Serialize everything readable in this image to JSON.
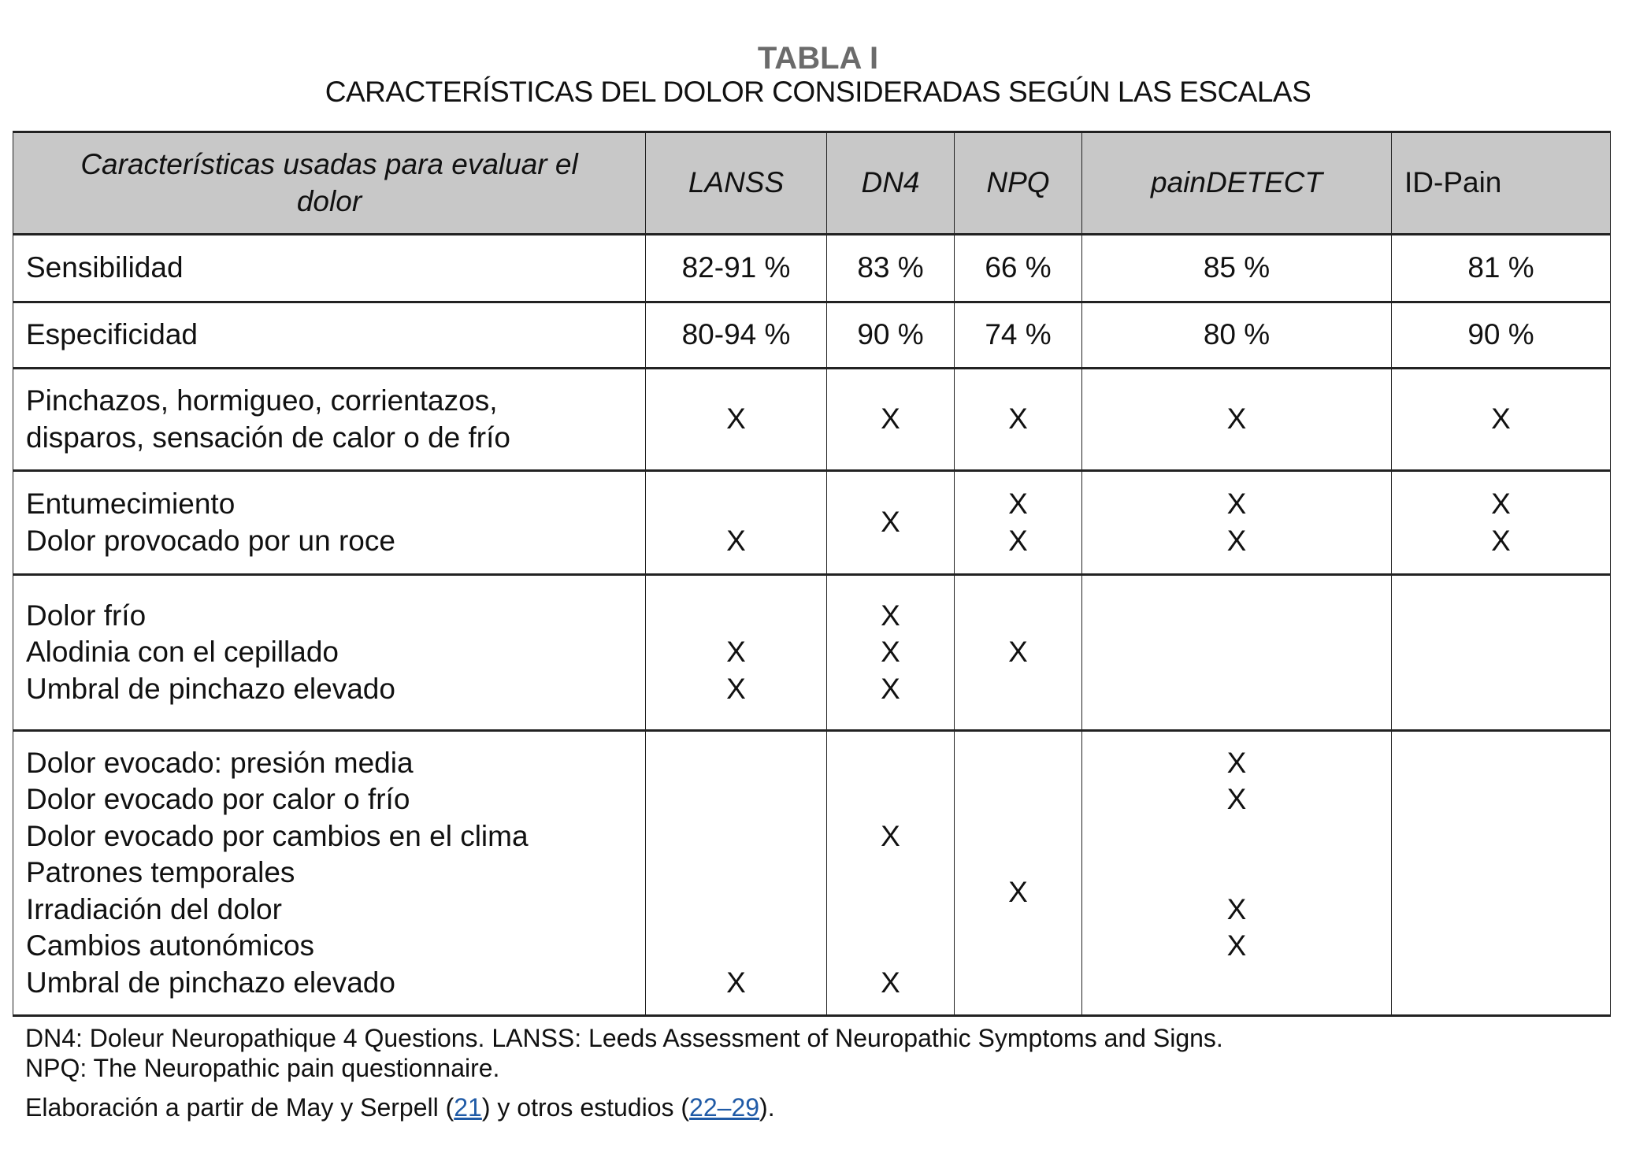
{
  "title": "TABLA I",
  "subtitle": "CARACTERÍSTICAS DEL DOLOR CONSIDERADAS SEGÚN LAS ESCALAS",
  "table": {
    "headers": [
      "Características usadas para evaluar el dolor",
      "LANSS",
      "DN4",
      "NPQ",
      "painDETECT",
      "ID-Pain"
    ],
    "rows": [
      {
        "labels": [
          "Sensibilidad"
        ],
        "cells": [
          [
            "82-91 %"
          ],
          [
            "83 %"
          ],
          [
            "66 %"
          ],
          [
            "85 %"
          ],
          [
            "81 %"
          ]
        ]
      },
      {
        "labels": [
          "Especificidad"
        ],
        "cells": [
          [
            "80-94 %"
          ],
          [
            "90 %"
          ],
          [
            "74 %"
          ],
          [
            "80 %"
          ],
          [
            "90 %"
          ]
        ]
      },
      {
        "labels": [
          "Pinchazos, hormigueo, corrientazos,",
          "disparos, sensación de calor o de frío"
        ],
        "cells": [
          [
            "X"
          ],
          [
            "X"
          ],
          [
            "X"
          ],
          [
            "X"
          ],
          [
            "X"
          ]
        ]
      },
      {
        "labels": [
          "Entumecimiento",
          "Dolor provocado por un roce"
        ],
        "cells": [
          [
            "",
            "X"
          ],
          [
            "X"
          ],
          [
            "X",
            "X"
          ],
          [
            "X",
            "X"
          ],
          [
            "X",
            "X"
          ]
        ]
      },
      {
        "labels": [
          "Dolor frío",
          "Alodinia con el cepillado",
          "Umbral de pinchazo elevado"
        ],
        "cells": [
          [
            "",
            "X",
            "X"
          ],
          [
            "X",
            "X",
            "X"
          ],
          [
            "X"
          ],
          [],
          []
        ]
      },
      {
        "labels": [
          "Dolor evocado: presión media",
          "Dolor evocado por calor o frío",
          "Dolor evocado por cambios en el clima",
          "Patrones temporales",
          "Irradiación del dolor",
          "Cambios autonómicos",
          "Umbral de pinchazo elevado"
        ],
        "cells": [
          [
            "",
            "",
            "",
            "",
            "",
            "",
            "X"
          ],
          [
            "",
            "",
            "X",
            "",
            "",
            "",
            "X"
          ],
          [
            "X"
          ],
          [
            "X",
            "X",
            "",
            "",
            "X",
            "X",
            ""
          ],
          []
        ]
      }
    ]
  },
  "footnotes": {
    "abbrev_line1": "DN4: Doleur Neuropathique 4 Questions. LANSS: Leeds Assessment of Neuropathic Symptoms and Signs.",
    "abbrev_line2": "NPQ: The Neuropathic pain questionnaire.",
    "source_prefix": "Elaboración a partir de May y Serpell (",
    "ref1": "21",
    "source_middle": ") y otros estudios (",
    "ref2": "22–29",
    "source_suffix": ")."
  },
  "colors": {
    "header_bg": "#c8c8c8",
    "title_gray": "#6b6b6b",
    "link": "#1f5aa6"
  }
}
